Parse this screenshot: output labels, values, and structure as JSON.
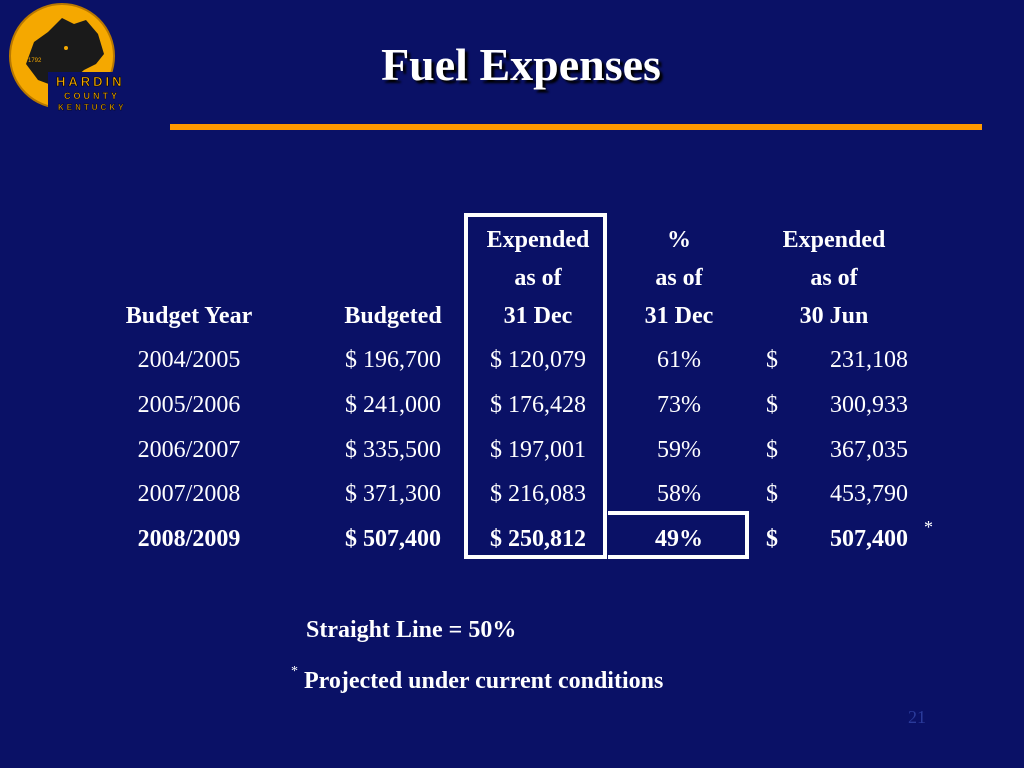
{
  "slide": {
    "title": "Fuel Expenses",
    "page_number": "21"
  },
  "logo": {
    "year": "1792",
    "line1": "HARDIN",
    "line2": "COUNTY",
    "line3": "KENTUCKY"
  },
  "colors": {
    "background": "#0a1166",
    "accent_rule": "#ff9900",
    "logo_gold": "#f5a800"
  },
  "table": {
    "headers": {
      "budget_year": "Budget Year",
      "budgeted": "Budgeted",
      "expended_dec": [
        "Expended",
        "as of",
        "31 Dec"
      ],
      "pct_dec": [
        "%",
        "as of",
        "31 Dec"
      ],
      "expended_jun": [
        "Expended",
        "as of",
        "30 Jun"
      ]
    },
    "rows": [
      {
        "year": "2004/2005",
        "budgeted": "$  196,700",
        "expended_dec": "$ 120,079",
        "pct": "61%",
        "jun_symbol": "$",
        "jun_value": "231,108"
      },
      {
        "year": "2005/2006",
        "budgeted": "$  241,000",
        "expended_dec": "$ 176,428",
        "pct": "73%",
        "jun_symbol": "$",
        "jun_value": "300,933"
      },
      {
        "year": "2006/2007",
        "budgeted": "$  335,500",
        "expended_dec": "$ 197,001",
        "pct": "59%",
        "jun_symbol": "$",
        "jun_value": "367,035"
      },
      {
        "year": "2007/2008",
        "budgeted": "$  371,300",
        "expended_dec": "$ 216,083",
        "pct": "58%",
        "jun_symbol": "$",
        "jun_value": "453,790"
      },
      {
        "year": "2008/2009",
        "budgeted": "$  507,400",
        "expended_dec": "$ 250,812",
        "pct": "49%",
        "jun_symbol": "$",
        "jun_value": "507,400"
      }
    ],
    "projection_marker": "*"
  },
  "notes": {
    "straight_line": "Straight Line = 50%",
    "footnote_marker": "*",
    "footnote_text": "Projected under current conditions"
  }
}
